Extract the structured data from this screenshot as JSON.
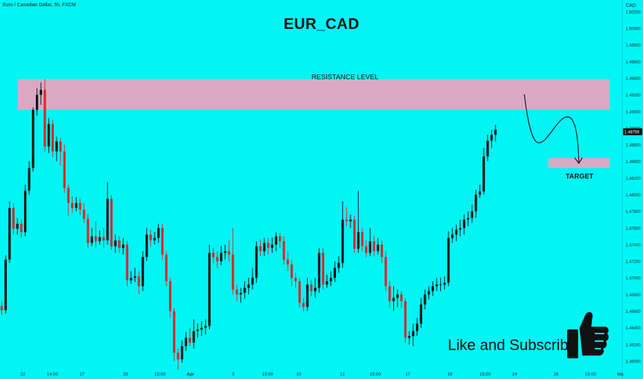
{
  "header": {
    "symbol_text": "Euro / Canadian Dollar, 5h, FXCM",
    "title": "EUR_CAD"
  },
  "annotations": {
    "resistance_label": "RESISTANCE LEVEL",
    "target_label": "TARGET",
    "cta_text": "Like and Subscribe"
  },
  "icons": {
    "thumb": "thumbs-up-icon"
  },
  "colors": {
    "background": "#00f5f5",
    "up_candle": "#111111",
    "down_candle": "#d62b2b",
    "zone_fill": "#d9a9c4",
    "price_badge": "#111111"
  },
  "chart_data": {
    "type": "candlestick",
    "title": "EUR_CAD",
    "instrument": "Euro / Canadian Dollar",
    "timeframe": "5h",
    "source": "FXCM",
    "y_axis": {
      "label": "CAD",
      "ticks": [
        1.502,
        1.5,
        1.498,
        1.496,
        1.494,
        1.492,
        1.49,
        1.488,
        1.486,
        1.484,
        1.482,
        1.48,
        1.478,
        1.476,
        1.474,
        1.472,
        1.47,
        1.468,
        1.466,
        1.464,
        1.462,
        1.46
      ],
      "tick_labels": [
        "1.50200",
        "1.50000",
        "1.49800",
        "1.49600",
        "1.49400",
        "1.49200",
        "1.49000",
        "1.48800",
        "1.48600",
        "1.48400",
        "1.48200",
        "1.48000",
        "1.47800",
        "1.47600",
        "1.47400",
        "1.47200",
        "1.47000",
        "1.46800",
        "1.46600",
        "1.46400",
        "1.46200",
        "1.46000"
      ],
      "range": [
        1.4595,
        1.5034
      ]
    },
    "x_axis": {
      "tick_labels": [
        "22",
        "14:00",
        "27",
        "29",
        "15:00",
        "Apr",
        "5",
        "15:00",
        "10",
        "12",
        "15:00",
        "17",
        "19",
        "15:00",
        "24",
        "26",
        "15:00",
        "Ma"
      ]
    },
    "last_price_label": "1.48756",
    "zones": [
      {
        "label": "RESISTANCE LEVEL",
        "y_low": 1.4902,
        "y_high": 1.4939
      },
      {
        "label": "TARGET",
        "y_low": 1.4832,
        "y_high": 1.4844
      }
    ],
    "candles": [
      {
        "o": 1.4666,
        "c": 1.4661,
        "h": 1.4672,
        "l": 1.4656
      },
      {
        "o": 1.4661,
        "c": 1.4722,
        "h": 1.4727,
        "l": 1.4657
      },
      {
        "o": 1.4722,
        "c": 1.4784,
        "h": 1.4792,
        "l": 1.4718
      },
      {
        "o": 1.4784,
        "c": 1.4759,
        "h": 1.479,
        "l": 1.4752
      },
      {
        "o": 1.4759,
        "c": 1.4765,
        "h": 1.4772,
        "l": 1.4752
      },
      {
        "o": 1.4765,
        "c": 1.4755,
        "h": 1.477,
        "l": 1.4748
      },
      {
        "o": 1.4755,
        "c": 1.4805,
        "h": 1.4812,
        "l": 1.475
      },
      {
        "o": 1.4805,
        "c": 1.4832,
        "h": 1.484,
        "l": 1.48
      },
      {
        "o": 1.4832,
        "c": 1.4902,
        "h": 1.4905,
        "l": 1.4828
      },
      {
        "o": 1.4902,
        "c": 1.492,
        "h": 1.4928,
        "l": 1.4895
      },
      {
        "o": 1.492,
        "c": 1.4926,
        "h": 1.4935,
        "l": 1.4908
      },
      {
        "o": 1.4926,
        "c": 1.4858,
        "h": 1.4939,
        "l": 1.4852
      },
      {
        "o": 1.4858,
        "c": 1.4885,
        "h": 1.4892,
        "l": 1.485
      },
      {
        "o": 1.4885,
        "c": 1.4852,
        "h": 1.489,
        "l": 1.4845
      },
      {
        "o": 1.4852,
        "c": 1.4864,
        "h": 1.487,
        "l": 1.484
      },
      {
        "o": 1.4864,
        "c": 1.4852,
        "h": 1.4868,
        "l": 1.4835
      },
      {
        "o": 1.4852,
        "c": 1.4808,
        "h": 1.486,
        "l": 1.4802
      },
      {
        "o": 1.4808,
        "c": 1.479,
        "h": 1.4812,
        "l": 1.4775
      },
      {
        "o": 1.479,
        "c": 1.4784,
        "h": 1.4798,
        "l": 1.4778
      },
      {
        "o": 1.4784,
        "c": 1.479,
        "h": 1.4797,
        "l": 1.478
      },
      {
        "o": 1.479,
        "c": 1.4782,
        "h": 1.4795,
        "l": 1.4776
      },
      {
        "o": 1.4782,
        "c": 1.4771,
        "h": 1.479,
        "l": 1.4766
      },
      {
        "o": 1.4771,
        "c": 1.4742,
        "h": 1.4777,
        "l": 1.4736
      },
      {
        "o": 1.4742,
        "c": 1.475,
        "h": 1.476,
        "l": 1.4738
      },
      {
        "o": 1.475,
        "c": 1.4744,
        "h": 1.4768,
        "l": 1.4736
      },
      {
        "o": 1.4744,
        "c": 1.4749,
        "h": 1.4757,
        "l": 1.474
      },
      {
        "o": 1.4749,
        "c": 1.4745,
        "h": 1.476,
        "l": 1.4736
      },
      {
        "o": 1.4745,
        "c": 1.4795,
        "h": 1.4815,
        "l": 1.474
      },
      {
        "o": 1.4795,
        "c": 1.4738,
        "h": 1.48,
        "l": 1.4734
      },
      {
        "o": 1.4738,
        "c": 1.4745,
        "h": 1.4752,
        "l": 1.473
      },
      {
        "o": 1.4745,
        "c": 1.4736,
        "h": 1.475,
        "l": 1.473
      },
      {
        "o": 1.4736,
        "c": 1.474,
        "h": 1.4748,
        "l": 1.4728
      },
      {
        "o": 1.474,
        "c": 1.4697,
        "h": 1.4744,
        "l": 1.469
      },
      {
        "o": 1.4697,
        "c": 1.47,
        "h": 1.4708,
        "l": 1.4693
      },
      {
        "o": 1.47,
        "c": 1.4702,
        "h": 1.4712,
        "l": 1.4695
      },
      {
        "o": 1.4702,
        "c": 1.469,
        "h": 1.4708,
        "l": 1.468
      },
      {
        "o": 1.469,
        "c": 1.4725,
        "h": 1.4732,
        "l": 1.4684
      },
      {
        "o": 1.4725,
        "c": 1.4752,
        "h": 1.476,
        "l": 1.472
      },
      {
        "o": 1.4752,
        "c": 1.4745,
        "h": 1.4758,
        "l": 1.4738
      },
      {
        "o": 1.4745,
        "c": 1.4748,
        "h": 1.4755,
        "l": 1.474
      },
      {
        "o": 1.4748,
        "c": 1.476,
        "h": 1.4765,
        "l": 1.4742
      },
      {
        "o": 1.476,
        "c": 1.4728,
        "h": 1.4765,
        "l": 1.4722
      },
      {
        "o": 1.4728,
        "c": 1.4696,
        "h": 1.4732,
        "l": 1.469
      },
      {
        "o": 1.4696,
        "c": 1.466,
        "h": 1.47,
        "l": 1.4652
      },
      {
        "o": 1.466,
        "c": 1.461,
        "h": 1.4664,
        "l": 1.46
      },
      {
        "o": 1.461,
        "c": 1.4602,
        "h": 1.4615,
        "l": 1.459
      },
      {
        "o": 1.4602,
        "c": 1.4618,
        "h": 1.4625,
        "l": 1.4598
      },
      {
        "o": 1.4618,
        "c": 1.4628,
        "h": 1.4635,
        "l": 1.4612
      },
      {
        "o": 1.4628,
        "c": 1.4622,
        "h": 1.464,
        "l": 1.4618
      },
      {
        "o": 1.4622,
        "c": 1.4636,
        "h": 1.465,
        "l": 1.4615
      },
      {
        "o": 1.4636,
        "c": 1.4638,
        "h": 1.4645,
        "l": 1.4628
      },
      {
        "o": 1.4638,
        "c": 1.464,
        "h": 1.4648,
        "l": 1.463
      },
      {
        "o": 1.464,
        "c": 1.4642,
        "h": 1.465,
        "l": 1.4632
      },
      {
        "o": 1.4642,
        "c": 1.473,
        "h": 1.474,
        "l": 1.4638
      },
      {
        "o": 1.473,
        "c": 1.4725,
        "h": 1.4736,
        "l": 1.4718
      },
      {
        "o": 1.4725,
        "c": 1.472,
        "h": 1.4732,
        "l": 1.4712
      },
      {
        "o": 1.472,
        "c": 1.473,
        "h": 1.4738,
        "l": 1.4715
      },
      {
        "o": 1.473,
        "c": 1.4732,
        "h": 1.474,
        "l": 1.4722
      },
      {
        "o": 1.4732,
        "c": 1.4728,
        "h": 1.4745,
        "l": 1.472
      },
      {
        "o": 1.4728,
        "c": 1.4686,
        "h": 1.476,
        "l": 1.468
      },
      {
        "o": 1.4686,
        "c": 1.468,
        "h": 1.4692,
        "l": 1.4672
      },
      {
        "o": 1.468,
        "c": 1.4682,
        "h": 1.4688,
        "l": 1.467
      },
      {
        "o": 1.4682,
        "c": 1.4688,
        "h": 1.4696,
        "l": 1.4675
      },
      {
        "o": 1.4688,
        "c": 1.4692,
        "h": 1.47,
        "l": 1.468
      },
      {
        "o": 1.4692,
        "c": 1.47,
        "h": 1.4712,
        "l": 1.4686
      },
      {
        "o": 1.47,
        "c": 1.4738,
        "h": 1.4744,
        "l": 1.4694
      },
      {
        "o": 1.4738,
        "c": 1.4732,
        "h": 1.4746,
        "l": 1.4726
      },
      {
        "o": 1.4732,
        "c": 1.4742,
        "h": 1.4748,
        "l": 1.4726
      },
      {
        "o": 1.4742,
        "c": 1.4736,
        "h": 1.4748,
        "l": 1.4728
      },
      {
        "o": 1.4736,
        "c": 1.474,
        "h": 1.4748,
        "l": 1.473
      },
      {
        "o": 1.474,
        "c": 1.475,
        "h": 1.4755,
        "l": 1.4732
      },
      {
        "o": 1.475,
        "c": 1.4744,
        "h": 1.4754,
        "l": 1.4736
      },
      {
        "o": 1.4744,
        "c": 1.4722,
        "h": 1.475,
        "l": 1.4716
      },
      {
        "o": 1.4722,
        "c": 1.4716,
        "h": 1.4732,
        "l": 1.4708
      },
      {
        "o": 1.4716,
        "c": 1.47,
        "h": 1.4722,
        "l": 1.469
      },
      {
        "o": 1.47,
        "c": 1.4696,
        "h": 1.4706,
        "l": 1.4688
      },
      {
        "o": 1.4696,
        "c": 1.467,
        "h": 1.47,
        "l": 1.4664
      },
      {
        "o": 1.467,
        "c": 1.4665,
        "h": 1.4676,
        "l": 1.466
      },
      {
        "o": 1.4665,
        "c": 1.4692,
        "h": 1.47,
        "l": 1.466
      },
      {
        "o": 1.4692,
        "c": 1.4684,
        "h": 1.4698,
        "l": 1.4678
      },
      {
        "o": 1.4684,
        "c": 1.4688,
        "h": 1.47,
        "l": 1.4676
      },
      {
        "o": 1.4688,
        "c": 1.473,
        "h": 1.4736,
        "l": 1.4682
      },
      {
        "o": 1.473,
        "c": 1.4692,
        "h": 1.4736,
        "l": 1.4686
      },
      {
        "o": 1.4692,
        "c": 1.4696,
        "h": 1.4704,
        "l": 1.4688
      },
      {
        "o": 1.4696,
        "c": 1.47,
        "h": 1.4708,
        "l": 1.469
      },
      {
        "o": 1.47,
        "c": 1.4712,
        "h": 1.472,
        "l": 1.4695
      },
      {
        "o": 1.4712,
        "c": 1.4718,
        "h": 1.4726,
        "l": 1.4706
      },
      {
        "o": 1.4718,
        "c": 1.477,
        "h": 1.4792,
        "l": 1.4712
      },
      {
        "o": 1.477,
        "c": 1.4768,
        "h": 1.4785,
        "l": 1.4762
      },
      {
        "o": 1.4768,
        "c": 1.477,
        "h": 1.4776,
        "l": 1.476
      },
      {
        "o": 1.477,
        "c": 1.4735,
        "h": 1.4775,
        "l": 1.473
      },
      {
        "o": 1.4735,
        "c": 1.4755,
        "h": 1.4805,
        "l": 1.473
      },
      {
        "o": 1.4755,
        "c": 1.4738,
        "h": 1.476,
        "l": 1.4732
      },
      {
        "o": 1.4738,
        "c": 1.473,
        "h": 1.4745,
        "l": 1.4725
      },
      {
        "o": 1.473,
        "c": 1.4744,
        "h": 1.476,
        "l": 1.4726
      },
      {
        "o": 1.4744,
        "c": 1.4732,
        "h": 1.475,
        "l": 1.4726
      },
      {
        "o": 1.4732,
        "c": 1.474,
        "h": 1.4748,
        "l": 1.4728
      },
      {
        "o": 1.474,
        "c": 1.4725,
        "h": 1.4745,
        "l": 1.4718
      },
      {
        "o": 1.4725,
        "c": 1.469,
        "h": 1.4732,
        "l": 1.4684
      },
      {
        "o": 1.469,
        "c": 1.4672,
        "h": 1.4696,
        "l": 1.4664
      },
      {
        "o": 1.4672,
        "c": 1.4676,
        "h": 1.469,
        "l": 1.466
      },
      {
        "o": 1.4676,
        "c": 1.468,
        "h": 1.4686,
        "l": 1.4665
      },
      {
        "o": 1.468,
        "c": 1.4672,
        "h": 1.4684,
        "l": 1.4664
      },
      {
        "o": 1.4672,
        "c": 1.4628,
        "h": 1.4676,
        "l": 1.4622
      },
      {
        "o": 1.4628,
        "c": 1.463,
        "h": 1.4636,
        "l": 1.462
      },
      {
        "o": 1.463,
        "c": 1.4636,
        "h": 1.4645,
        "l": 1.4618
      },
      {
        "o": 1.4636,
        "c": 1.4645,
        "h": 1.4652,
        "l": 1.463
      },
      {
        "o": 1.4645,
        "c": 1.4668,
        "h": 1.4676,
        "l": 1.464
      },
      {
        "o": 1.4668,
        "c": 1.468,
        "h": 1.4686,
        "l": 1.4662
      },
      {
        "o": 1.468,
        "c": 1.4684,
        "h": 1.469,
        "l": 1.4674
      },
      {
        "o": 1.4684,
        "c": 1.469,
        "h": 1.4696,
        "l": 1.4678
      },
      {
        "o": 1.469,
        "c": 1.4692,
        "h": 1.47,
        "l": 1.4684
      },
      {
        "o": 1.4692,
        "c": 1.4692,
        "h": 1.47,
        "l": 1.4684
      },
      {
        "o": 1.4692,
        "c": 1.4694,
        "h": 1.4702,
        "l": 1.4686
      },
      {
        "o": 1.4694,
        "c": 1.4748,
        "h": 1.4756,
        "l": 1.469
      },
      {
        "o": 1.4748,
        "c": 1.4752,
        "h": 1.476,
        "l": 1.4742
      },
      {
        "o": 1.4752,
        "c": 1.4758,
        "h": 1.4764,
        "l": 1.4744
      },
      {
        "o": 1.4758,
        "c": 1.476,
        "h": 1.477,
        "l": 1.475
      },
      {
        "o": 1.476,
        "c": 1.477,
        "h": 1.4776,
        "l": 1.4752
      },
      {
        "o": 1.477,
        "c": 1.4772,
        "h": 1.478,
        "l": 1.4762
      },
      {
        "o": 1.4772,
        "c": 1.478,
        "h": 1.4788,
        "l": 1.4766
      },
      {
        "o": 1.478,
        "c": 1.48,
        "h": 1.4806,
        "l": 1.4772
      },
      {
        "o": 1.48,
        "c": 1.4804,
        "h": 1.4812,
        "l": 1.4796
      },
      {
        "o": 1.4804,
        "c": 1.4846,
        "h": 1.4856,
        "l": 1.48
      },
      {
        "o": 1.4846,
        "c": 1.4865,
        "h": 1.4872,
        "l": 1.484
      },
      {
        "o": 1.4865,
        "c": 1.4872,
        "h": 1.4878,
        "l": 1.4856
      },
      {
        "o": 1.4872,
        "c": 1.4878,
        "h": 1.4884,
        "l": 1.4864
      }
    ]
  }
}
